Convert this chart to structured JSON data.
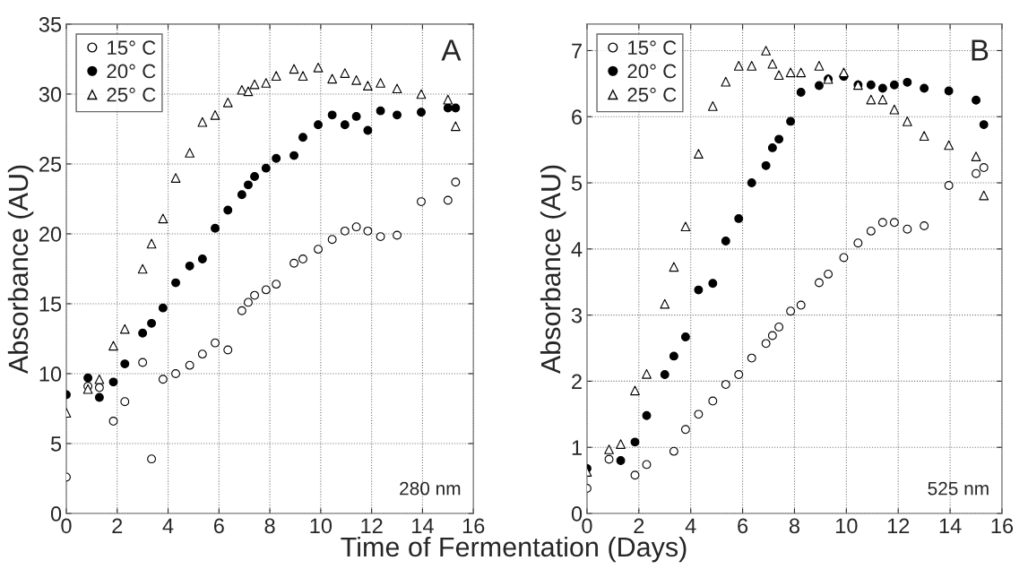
{
  "chart_data": [
    {
      "type": "scatter",
      "xlabel": "Time of Fermentation (Days)",
      "ylabel": "Absorbance (AU)",
      "annotations": [
        "A",
        "280 nm"
      ],
      "x": [
        0,
        0.85,
        1.3,
        1.85,
        2.3,
        3.0,
        3.35,
        3.8,
        4.3,
        4.85,
        5.35,
        5.85,
        6.35,
        6.9,
        7.15,
        7.4,
        7.85,
        8.25,
        8.95,
        9.3,
        9.9,
        10.45,
        10.95,
        11.4,
        11.85,
        12.35,
        13.0,
        13.95,
        15.0,
        15.3
      ],
      "series": [
        {
          "name": "15° C",
          "color": "#ffffff",
          "marker": "circle",
          "values": [
            2.6,
            9.1,
            9.0,
            6.6,
            8.0,
            10.8,
            3.9,
            9.6,
            10.0,
            10.6,
            11.4,
            12.2,
            11.7,
            14.5,
            15.1,
            15.6,
            16.0,
            16.4,
            17.9,
            18.2,
            18.9,
            19.6,
            20.2,
            20.5,
            20.2,
            19.8,
            19.9,
            22.3,
            22.4,
            23.7
          ]
        },
        {
          "name": "20° C",
          "color": "#000000",
          "marker": "circle",
          "values": [
            8.5,
            9.7,
            8.3,
            9.4,
            10.7,
            12.9,
            13.6,
            14.7,
            16.5,
            17.7,
            18.2,
            20.4,
            21.7,
            22.8,
            23.5,
            24.1,
            24.7,
            25.4,
            25.6,
            26.9,
            27.8,
            28.5,
            27.8,
            28.4,
            27.4,
            28.8,
            28.5,
            28.7,
            29.0,
            29.0
          ]
        },
        {
          "name": "25° C",
          "color": "#ffffff",
          "marker": "triangle",
          "values": [
            7.2,
            8.9,
            9.6,
            12.0,
            13.2,
            17.5,
            19.3,
            21.1,
            24.0,
            25.8,
            28.0,
            28.5,
            29.4,
            30.3,
            30.2,
            30.7,
            30.8,
            31.3,
            31.8,
            31.3,
            31.9,
            31.1,
            31.5,
            31.0,
            30.6,
            30.8,
            30.4,
            30.0,
            29.6,
            27.7
          ]
        }
      ],
      "xlim": [
        0,
        16
      ],
      "xticks": [
        0,
        2,
        4,
        6,
        8,
        10,
        12,
        14,
        16
      ],
      "ylim": [
        0,
        35
      ],
      "yticks": [
        0,
        5,
        10,
        15,
        20,
        25,
        30,
        35
      ],
      "grid": true,
      "legend": "top left"
    },
    {
      "type": "scatter",
      "ylabel": "Absorbance (AU)",
      "annotations": [
        "B",
        "525 nm"
      ],
      "x": [
        0,
        0.85,
        1.3,
        1.85,
        2.3,
        3.0,
        3.35,
        3.8,
        4.3,
        4.85,
        5.35,
        5.85,
        6.35,
        6.9,
        7.15,
        7.4,
        7.85,
        8.25,
        8.95,
        9.3,
        9.9,
        10.45,
        10.95,
        11.4,
        11.85,
        12.35,
        13.0,
        13.95,
        15.0,
        15.3
      ],
      "series": [
        {
          "name": "15° C",
          "color": "#ffffff",
          "marker": "circle",
          "values": [
            0.38,
            0.82,
            null,
            0.58,
            0.74,
            null,
            0.94,
            1.27,
            1.5,
            1.7,
            1.95,
            2.1,
            2.35,
            2.57,
            2.69,
            2.82,
            3.06,
            3.15,
            3.49,
            3.62,
            3.87,
            4.09,
            4.27,
            4.4,
            4.4,
            4.3,
            4.35,
            4.96,
            5.14,
            5.23
          ]
        },
        {
          "name": "20° C",
          "color": "#000000",
          "marker": "circle",
          "values": [
            0.68,
            null,
            0.8,
            1.08,
            1.48,
            2.1,
            2.38,
            2.67,
            3.38,
            3.48,
            4.12,
            4.46,
            5.0,
            5.26,
            5.53,
            5.66,
            5.93,
            6.37,
            6.47,
            6.57,
            6.61,
            6.48,
            6.48,
            6.43,
            6.48,
            6.52,
            6.43,
            6.39,
            6.25,
            5.88
          ]
        },
        {
          "name": "25° C",
          "color": "#ffffff",
          "marker": "triangle",
          "values": [
            0.63,
            0.97,
            1.05,
            1.86,
            2.11,
            3.17,
            3.73,
            4.34,
            5.44,
            6.16,
            6.53,
            6.77,
            6.77,
            7.0,
            6.8,
            6.63,
            6.67,
            6.67,
            6.77,
            6.57,
            6.67,
            6.48,
            6.26,
            6.26,
            6.11,
            5.93,
            5.71,
            5.57,
            5.4,
            4.81
          ]
        }
      ],
      "xlim": [
        0,
        16
      ],
      "xticks": [
        0,
        2,
        4,
        6,
        8,
        10,
        12,
        14,
        16
      ],
      "ylim": [
        0,
        7.4
      ],
      "yticks": [
        0,
        1,
        2,
        3,
        4,
        5,
        6,
        7
      ],
      "grid": true,
      "legend": "top left"
    }
  ]
}
